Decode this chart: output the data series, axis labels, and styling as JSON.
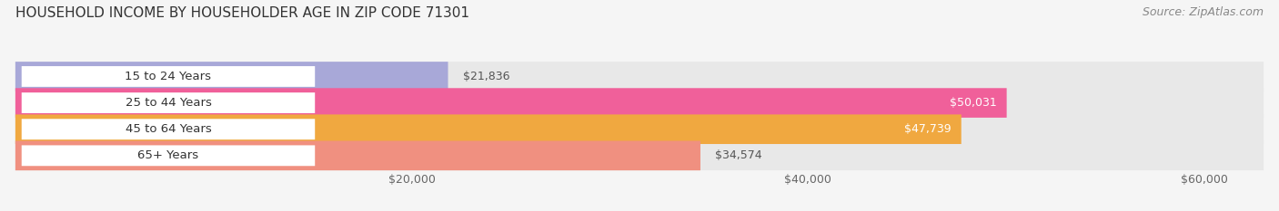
{
  "title": "HOUSEHOLD INCOME BY HOUSEHOLDER AGE IN ZIP CODE 71301",
  "source": "Source: ZipAtlas.com",
  "categories": [
    "15 to 24 Years",
    "25 to 44 Years",
    "45 to 64 Years",
    "65+ Years"
  ],
  "values": [
    21836,
    50031,
    47739,
    34574
  ],
  "bar_colors": [
    "#a8a8d8",
    "#f0609a",
    "#f0a840",
    "#f09080"
  ],
  "bar_track_color": "#e8e8e8",
  "label_colors": [
    "#555555",
    "#ffffff",
    "#ffffff",
    "#555555"
  ],
  "xmax": 63000,
  "xticks": [
    20000,
    40000,
    60000
  ],
  "xtick_labels": [
    "$20,000",
    "$40,000",
    "$60,000"
  ],
  "background_color": "#f5f5f5",
  "bar_height": 0.56,
  "title_fontsize": 11,
  "source_fontsize": 9,
  "label_fontsize": 9,
  "tick_fontsize": 9,
  "cat_fontsize": 9.5
}
